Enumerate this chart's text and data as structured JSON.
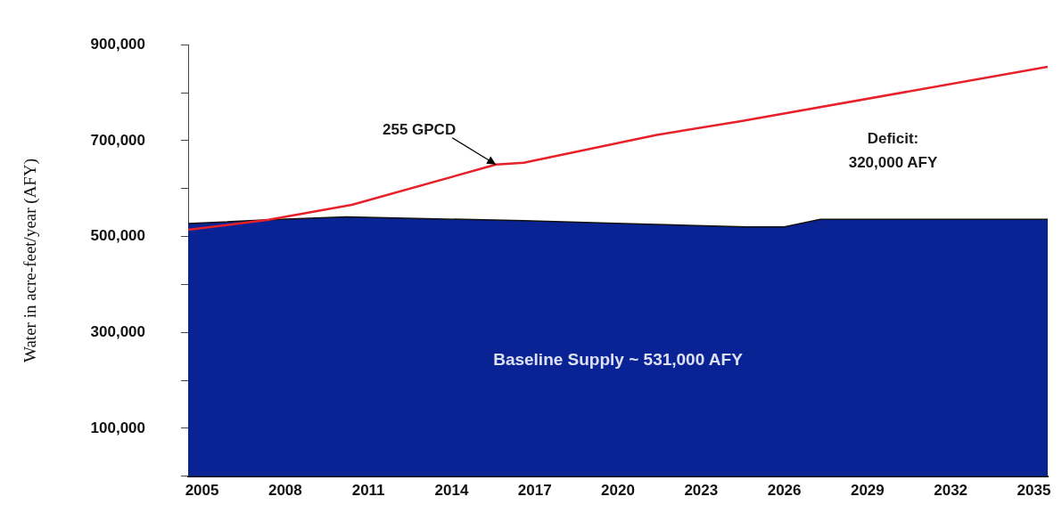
{
  "chart_data": {
    "type": "area",
    "ylabel": "Water in acre-feet/year (AFY)",
    "xlim": [
      2004.5,
      2035.5
    ],
    "xticks": [
      2005,
      2008,
      2011,
      2014,
      2017,
      2020,
      2023,
      2026,
      2029,
      2032,
      2035
    ],
    "ylim": [
      0,
      900000
    ],
    "yticks": [
      {
        "value": 0,
        "label": null
      },
      {
        "value": 100000,
        "label": "100,000"
      },
      {
        "value": 200000,
        "label": null
      },
      {
        "value": 300000,
        "label": "300,000"
      },
      {
        "value": 400000,
        "label": null
      },
      {
        "value": 500000,
        "label": "500,000"
      },
      {
        "value": 600000,
        "label": null
      },
      {
        "value": 700000,
        "label": "700,000"
      },
      {
        "value": 800000,
        "label": null
      },
      {
        "value": 900000,
        "label": "900,000"
      }
    ],
    "grid": false,
    "legend": false,
    "series": [
      {
        "name": "Baseline Supply ~ 531,000 AFY",
        "color": "#0a2394",
        "x": [
          2004.5,
          2007.4,
          2010.2,
          2016.6,
          2020.2,
          2024.6,
          2026,
          2027.3,
          2035.5
        ],
        "values": [
          527000,
          535000,
          541000,
          533000,
          527000,
          520000,
          520000,
          536000,
          536000
        ]
      },
      {
        "type": "line",
        "color": "#e8202a",
        "x": [
          2004.5,
          2007.4,
          2010.4,
          2015.6,
          2016.6,
          2021.4,
          2024.4,
          2035.5
        ],
        "values": [
          514000,
          535000,
          566000,
          650000,
          654000,
          712000,
          740000,
          854000
        ]
      }
    ],
    "annotations": [
      {
        "text": "255 GPCD",
        "x": 2015.6,
        "y": 650000
      },
      "Deficit:\n320,000 AFY"
    ]
  }
}
